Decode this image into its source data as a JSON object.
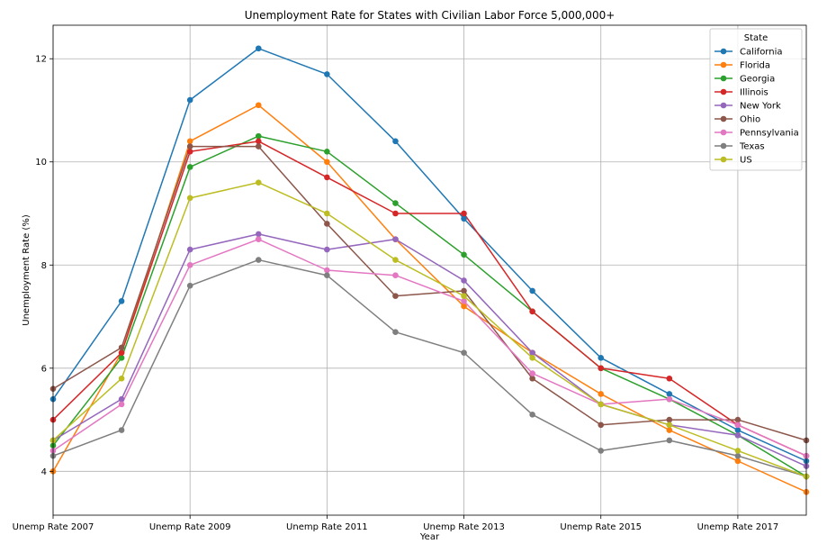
{
  "chart_data": {
    "type": "line",
    "title": "Unemployment Rate for States with Civilian Labor Force 5,000,000+",
    "xlabel": "Year",
    "ylabel": "Unemployment Rate (%)",
    "x": [
      "Unemp Rate 2007",
      "Unemp Rate 2008",
      "Unemp Rate 2009",
      "Unemp Rate 2010",
      "Unemp Rate 2011",
      "Unemp Rate 2012",
      "Unemp Rate 2013",
      "Unemp Rate 2014",
      "Unemp Rate 2015",
      "Unemp Rate 2016",
      "Unemp Rate 2017",
      "Unemp Rate 2018"
    ],
    "xticks_shown": [
      "Unemp Rate 2007",
      "Unemp Rate 2009",
      "Unemp Rate 2011",
      "Unemp Rate 2013",
      "Unemp Rate 2015",
      "Unemp Rate 2017"
    ],
    "yticks": [
      4,
      6,
      8,
      10,
      12
    ],
    "ylim": [
      3.15,
      12.65
    ],
    "grid": true,
    "legend": {
      "title": "State",
      "placement": "top-right"
    },
    "series": [
      {
        "name": "California",
        "color": "#1f77b4",
        "values": [
          5.4,
          7.3,
          11.2,
          12.2,
          11.7,
          10.4,
          8.9,
          7.5,
          6.2,
          5.5,
          4.8,
          4.2
        ]
      },
      {
        "name": "Florida",
        "color": "#ff7f0e",
        "values": [
          4.0,
          6.3,
          10.4,
          11.1,
          10.0,
          8.5,
          7.2,
          6.3,
          5.5,
          4.8,
          4.2,
          3.6
        ]
      },
      {
        "name": "Georgia",
        "color": "#2ca02c",
        "values": [
          4.5,
          6.2,
          9.9,
          10.5,
          10.2,
          9.2,
          8.2,
          7.1,
          6.0,
          5.4,
          4.7,
          3.9
        ]
      },
      {
        "name": "Illinois",
        "color": "#d62728",
        "values": [
          5.0,
          6.3,
          10.2,
          10.4,
          9.7,
          9.0,
          9.0,
          7.1,
          6.0,
          5.8,
          4.9,
          4.3
        ]
      },
      {
        "name": "New York",
        "color": "#9467bd",
        "values": [
          4.6,
          5.4,
          8.3,
          8.6,
          8.3,
          8.5,
          7.7,
          6.3,
          5.3,
          4.9,
          4.7,
          4.1
        ]
      },
      {
        "name": "Ohio",
        "color": "#8c564b",
        "values": [
          5.6,
          6.4,
          10.3,
          10.3,
          8.8,
          7.4,
          7.5,
          5.8,
          4.9,
          5.0,
          5.0,
          4.6
        ]
      },
      {
        "name": "Pennsylvania",
        "color": "#e377c2",
        "values": [
          4.4,
          5.3,
          8.0,
          8.5,
          7.9,
          7.8,
          7.3,
          5.9,
          5.3,
          5.4,
          4.9,
          4.3
        ]
      },
      {
        "name": "Texas",
        "color": "#7f7f7f",
        "values": [
          4.3,
          4.8,
          7.6,
          8.1,
          7.8,
          6.7,
          6.3,
          5.1,
          4.4,
          4.6,
          4.3,
          3.9
        ]
      },
      {
        "name": "US",
        "color": "#bcbd22",
        "values": [
          4.6,
          5.8,
          9.3,
          9.6,
          9.0,
          8.1,
          7.4,
          6.2,
          5.3,
          4.9,
          4.4,
          3.9
        ]
      }
    ]
  }
}
